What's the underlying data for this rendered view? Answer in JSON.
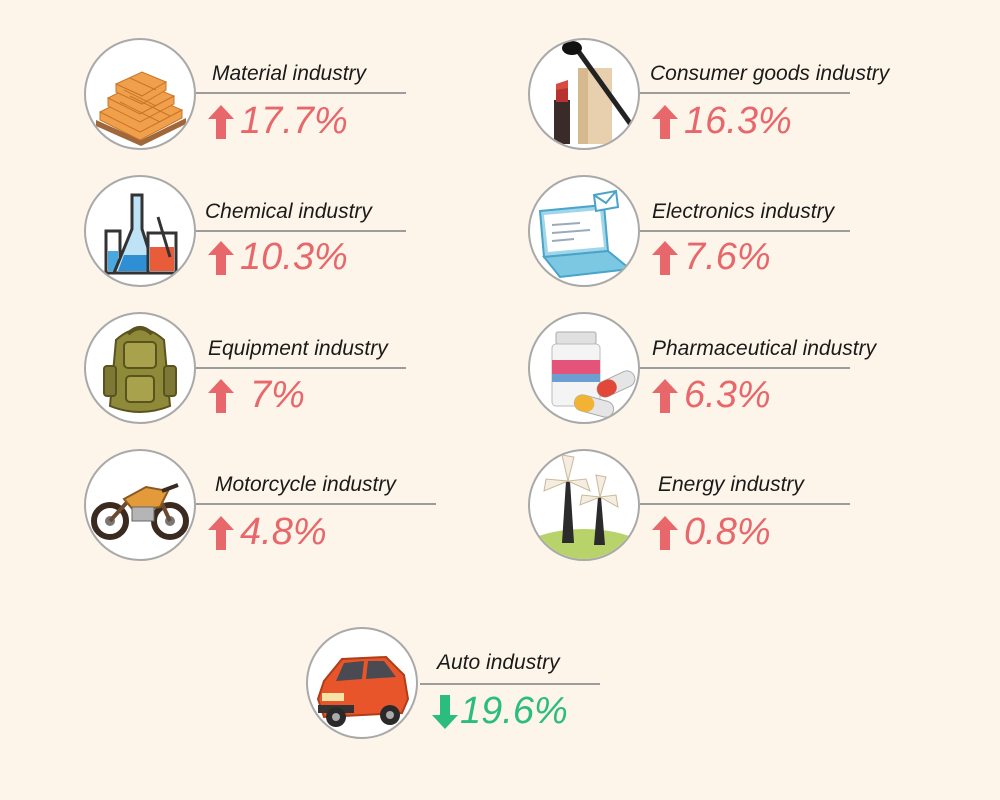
{
  "colors": {
    "up": "#e8676b",
    "down": "#2bbd7e",
    "background": "#fdf5e9",
    "rule": "#9c9c9c"
  },
  "items": [
    {
      "label": "Material industry",
      "value": "17.7%",
      "direction": "up",
      "icon": "bricks-icon"
    },
    {
      "label": "Consumer goods industry",
      "value": "16.3%",
      "direction": "up",
      "icon": "cosmetics-icon"
    },
    {
      "label": "Chemical industry",
      "value": "10.3%",
      "direction": "up",
      "icon": "lab-flask-icon"
    },
    {
      "label": "Electronics industry",
      "value": "7.6%",
      "direction": "up",
      "icon": "laptop-icon"
    },
    {
      "label": "Equipment industry",
      "value": "7%",
      "direction": "up",
      "icon": "backpack-icon"
    },
    {
      "label": "Pharmaceutical industry",
      "value": "6.3%",
      "direction": "up",
      "icon": "pills-icon"
    },
    {
      "label": "Motorcycle industry",
      "value": "4.8%",
      "direction": "up",
      "icon": "motorcycle-icon"
    },
    {
      "label": "Energy industry",
      "value": "0.8%",
      "direction": "up",
      "icon": "windmill-icon"
    },
    {
      "label": "Auto industry",
      "value": "19.6%",
      "direction": "down",
      "icon": "car-icon"
    }
  ]
}
